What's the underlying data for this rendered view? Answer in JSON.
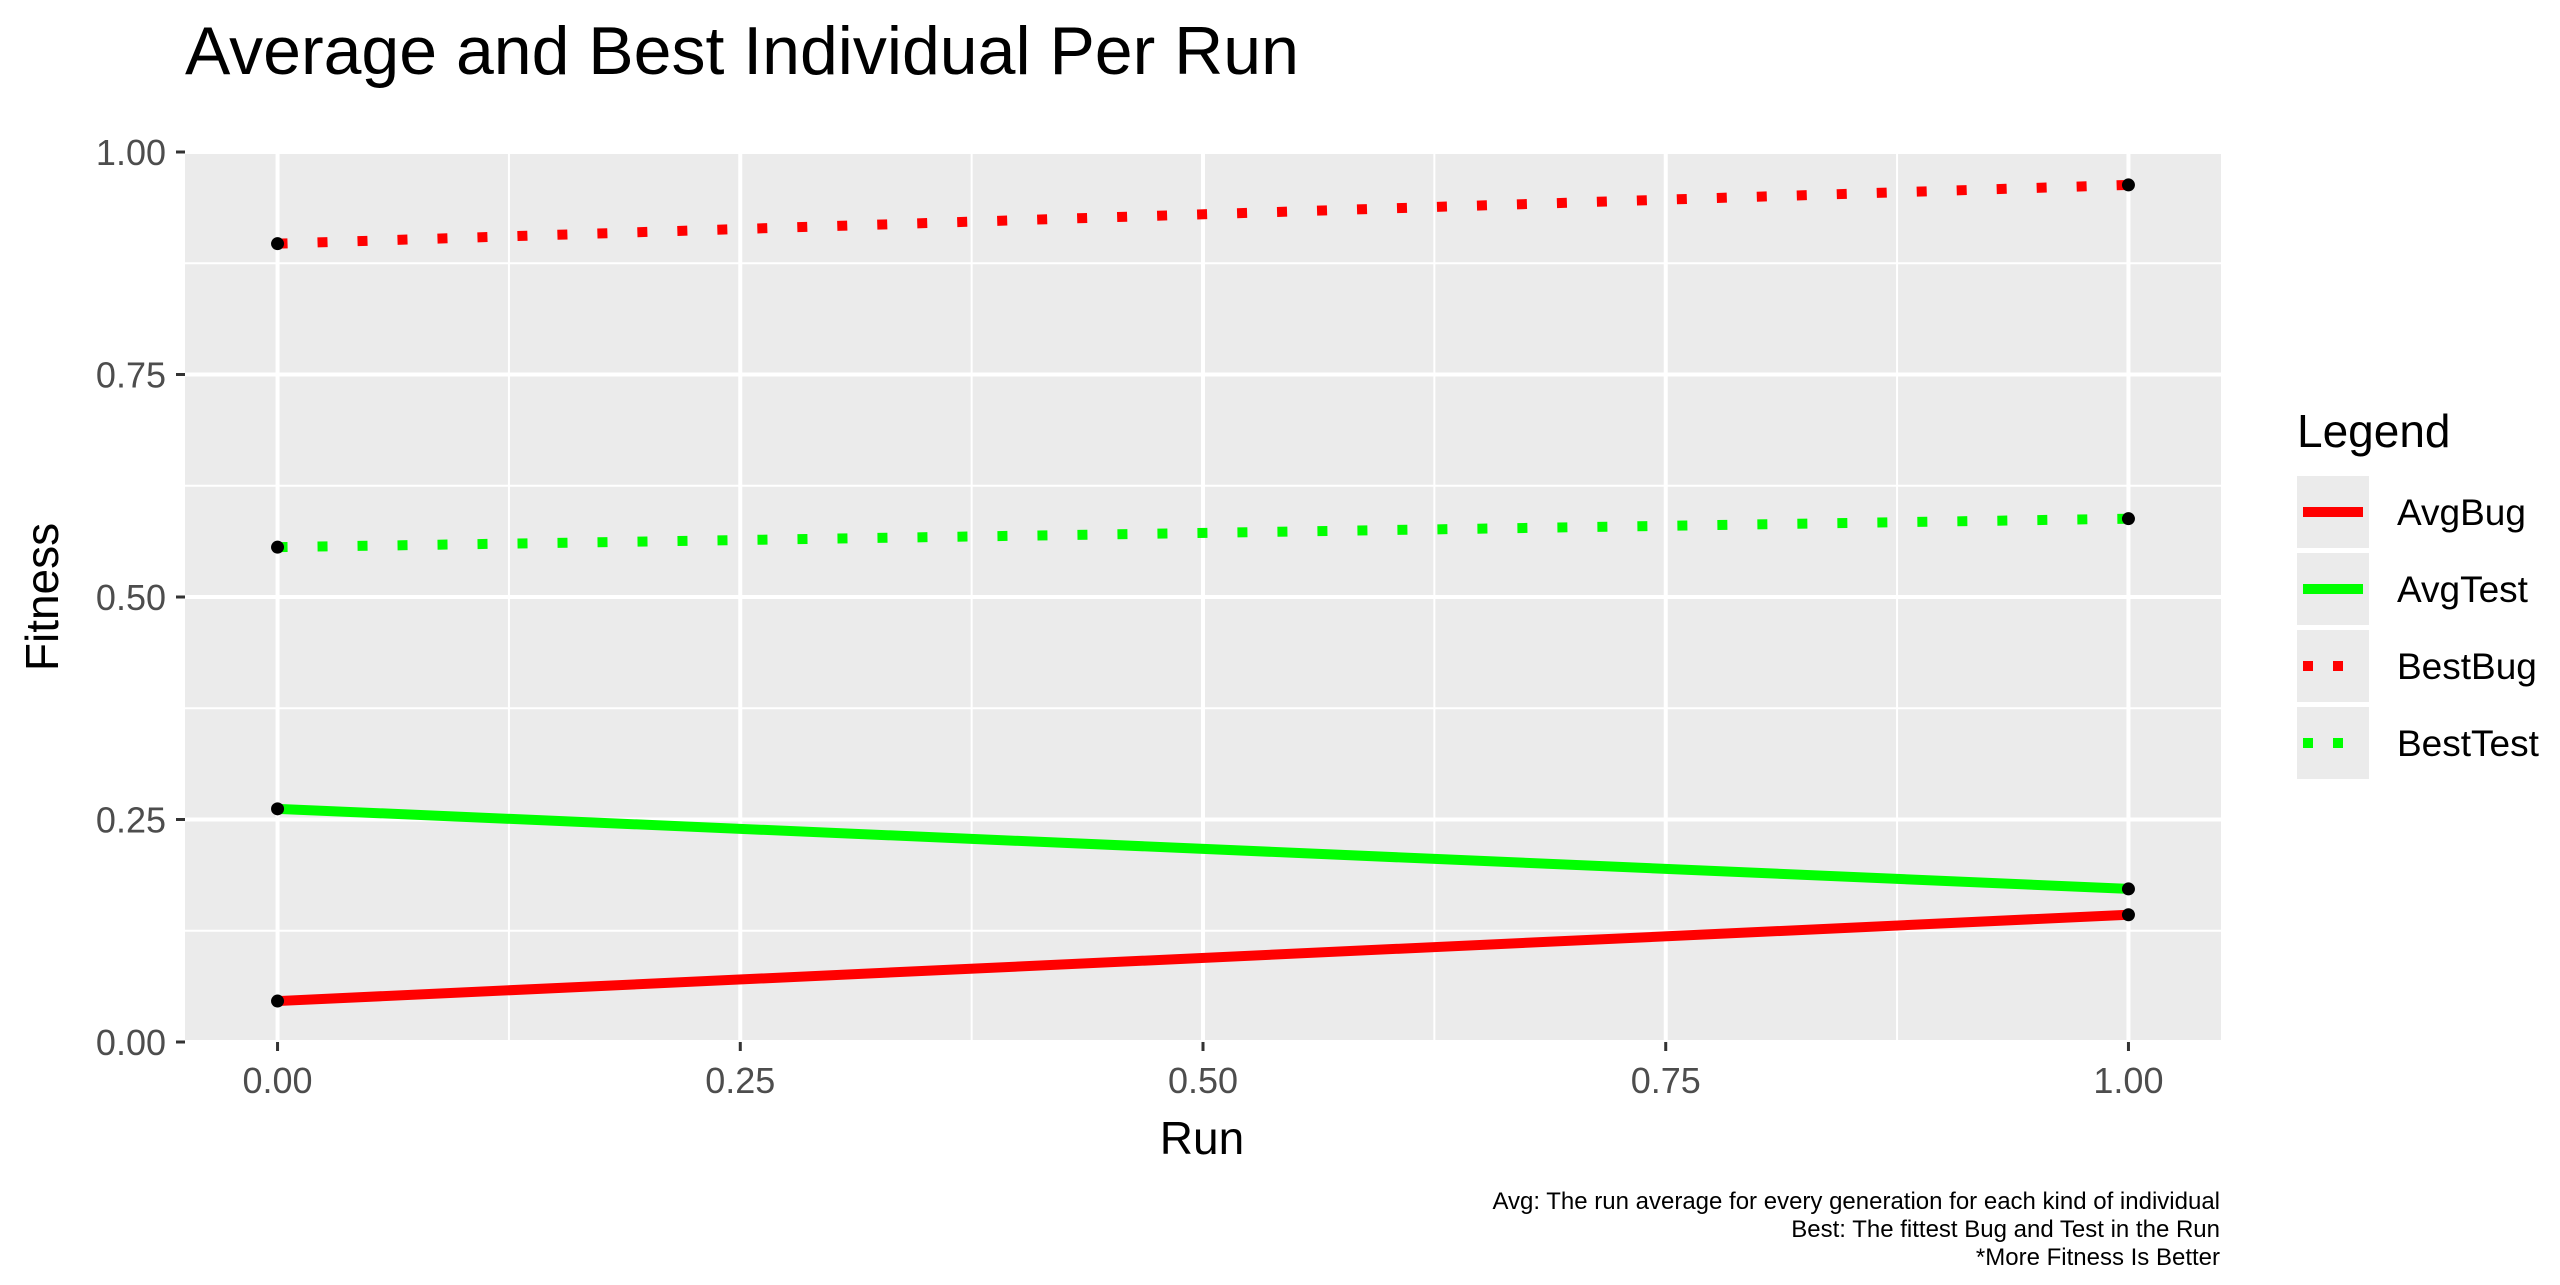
{
  "chart_data": {
    "type": "line",
    "title": "Average and Best Individual Per Run",
    "xlabel": "Run",
    "ylabel": "Fitness",
    "xlim": [
      -0.05,
      1.05
    ],
    "ylim": [
      0.0,
      1.0
    ],
    "x_ticks": [
      0.0,
      0.25,
      0.5,
      0.75,
      1.0
    ],
    "x_tick_labels": [
      "0.00",
      "0.25",
      "0.50",
      "0.75",
      "1.00"
    ],
    "y_ticks": [
      0.0,
      0.25,
      0.5,
      0.75,
      1.0
    ],
    "y_tick_labels": [
      "0.00",
      "0.25",
      "0.50",
      "0.75",
      "1.00"
    ],
    "grid": true,
    "legend_title": "Legend",
    "legend_position": "right",
    "series": [
      {
        "name": "AvgBug",
        "color": "#ff0000",
        "linestyle": "solid",
        "x": [
          0,
          1
        ],
        "values": [
          0.046,
          0.143
        ]
      },
      {
        "name": "AvgTest",
        "color": "#00ff00",
        "linestyle": "solid",
        "x": [
          0,
          1
        ],
        "values": [
          0.262,
          0.172
        ]
      },
      {
        "name": "BestBug",
        "color": "#ff0000",
        "linestyle": "dotted",
        "x": [
          0,
          1
        ],
        "values": [
          0.897,
          0.963
        ]
      },
      {
        "name": "BestTest",
        "color": "#00ff00",
        "linestyle": "dotted",
        "x": [
          0,
          1
        ],
        "values": [
          0.556,
          0.588
        ]
      }
    ],
    "caption": [
      "Avg: The run average for every generation for each kind of individual",
      "Best: The fittest Bug and Test in the Run",
      "*More Fitness Is Better"
    ]
  }
}
